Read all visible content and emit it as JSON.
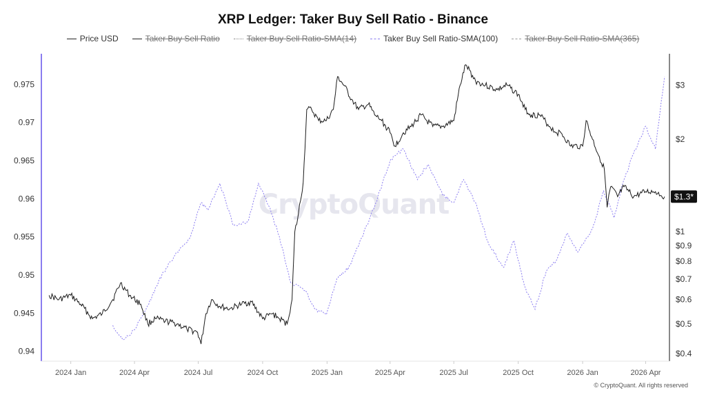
{
  "title": "XRP Ledger: Taker Buy Sell Ratio - Binance",
  "watermark": "CryptoQuant",
  "copyright": "© CryptoQuant. All rights reserved",
  "legend": [
    {
      "label": "Price USD",
      "style": "solid-black",
      "hidden": false
    },
    {
      "label": "Taker Buy Sell Ratio",
      "style": "solid-black",
      "hidden": true
    },
    {
      "label": "Taker Buy Sell Ratio-SMA(14)",
      "style": "dotted-grey",
      "hidden": true
    },
    {
      "label": "Taker Buy Sell Ratio-SMA(100)",
      "style": "dashed-purple",
      "hidden": false
    },
    {
      "label": "Taker Buy Sell Ratio-SMA(365)",
      "style": "dashed-grey",
      "hidden": true
    }
  ],
  "chart_data": {
    "type": "line",
    "title": "XRP Ledger: Taker Buy Sell Ratio - Binance",
    "x_ticks": [
      "2024 Jan",
      "2024 Apr",
      "2024 Jul",
      "2024 Oct",
      "2025 Jan",
      "2025 Apr",
      "2025 Jul",
      "2025 Oct",
      "2026 Jan",
      "2026 Apr"
    ],
    "y_left": {
      "ticks": [
        0.94,
        0.945,
        0.95,
        0.955,
        0.96,
        0.965,
        0.97,
        0.975
      ],
      "range": [
        0.9387,
        0.979
      ]
    },
    "y_right": {
      "scale": "log",
      "ticks": [
        {
          "value": 0.4,
          "label": "$0.4"
        },
        {
          "value": 0.5,
          "label": "$0.5"
        },
        {
          "value": 0.6,
          "label": "$0.6"
        },
        {
          "value": 0.7,
          "label": "$0.7"
        },
        {
          "value": 0.8,
          "label": "$0.8"
        },
        {
          "value": 0.9,
          "label": "$0.9"
        },
        {
          "value": 1,
          "label": "$1"
        },
        {
          "value": 2,
          "label": "$2"
        },
        {
          "value": 3,
          "label": "$3"
        }
      ]
    },
    "last_price_label": "$1.3*",
    "last_price_value": 1.3,
    "grid": false,
    "legend_position": "top-center",
    "colors": {
      "price": "#1a1a1a",
      "sma100": "#8a7cf0",
      "left_axis": "#8a7cf0",
      "right_axis": "#111111",
      "badge": "#111111"
    },
    "series": [
      {
        "name": "Price USD",
        "axis": "right",
        "x": [
          "2023-12-01",
          "2023-12-15",
          "2024-01-01",
          "2024-01-15",
          "2024-02-01",
          "2024-02-15",
          "2024-03-01",
          "2024-03-12",
          "2024-03-25",
          "2024-04-10",
          "2024-04-20",
          "2024-05-01",
          "2024-05-15",
          "2024-06-01",
          "2024-06-15",
          "2024-06-30",
          "2024-07-05",
          "2024-07-12",
          "2024-07-20",
          "2024-08-01",
          "2024-08-15",
          "2024-09-01",
          "2024-09-15",
          "2024-10-01",
          "2024-10-15",
          "2024-10-25",
          "2024-11-05",
          "2024-11-12",
          "2024-11-16",
          "2024-11-20",
          "2024-11-28",
          "2024-12-03",
          "2024-12-10",
          "2024-12-20",
          "2024-12-31",
          "2025-01-10",
          "2025-01-16",
          "2025-01-25",
          "2025-02-05",
          "2025-02-15",
          "2025-03-01",
          "2025-03-10",
          "2025-03-20",
          "2025-04-01",
          "2025-04-08",
          "2025-04-20",
          "2025-05-01",
          "2025-05-15",
          "2025-06-01",
          "2025-06-15",
          "2025-07-01",
          "2025-07-10",
          "2025-07-18",
          "2025-08-01",
          "2025-08-15",
          "2025-09-01",
          "2025-09-15",
          "2025-10-01",
          "2025-10-11",
          "2025-10-20",
          "2025-11-01",
          "2025-11-15",
          "2025-11-25",
          "2025-12-01",
          "2025-12-15",
          "2026-01-01",
          "2026-01-06",
          "2026-01-15",
          "2026-02-01",
          "2026-02-05",
          "2026-02-10",
          "2026-02-20",
          "2026-03-01",
          "2026-03-15",
          "2026-04-01",
          "2026-04-15",
          "2026-04-28"
        ],
        "y": [
          0.62,
          0.6,
          0.62,
          0.58,
          0.52,
          0.54,
          0.6,
          0.68,
          0.62,
          0.58,
          0.5,
          0.52,
          0.51,
          0.5,
          0.48,
          0.47,
          0.43,
          0.54,
          0.6,
          0.57,
          0.56,
          0.58,
          0.59,
          0.52,
          0.54,
          0.52,
          0.5,
          0.6,
          1.0,
          1.1,
          1.45,
          2.5,
          2.5,
          2.3,
          2.3,
          2.5,
          3.2,
          3.0,
          2.7,
          2.5,
          2.6,
          2.4,
          2.3,
          2.1,
          1.9,
          2.1,
          2.2,
          2.4,
          2.2,
          2.2,
          2.3,
          3.0,
          3.5,
          3.1,
          3.0,
          2.9,
          3.0,
          2.8,
          2.5,
          2.4,
          2.4,
          2.2,
          2.1,
          2.1,
          1.9,
          1.9,
          2.3,
          2.0,
          1.6,
          1.2,
          1.4,
          1.3,
          1.4,
          1.3,
          1.35,
          1.35,
          1.3
        ]
      },
      {
        "name": "Taker Buy Sell Ratio-SMA(100)",
        "axis": "left",
        "x": [
          "2024-03-01",
          "2024-03-15",
          "2024-04-01",
          "2024-04-20",
          "2024-05-10",
          "2024-06-01",
          "2024-06-20",
          "2024-07-05",
          "2024-07-15",
          "2024-08-01",
          "2024-08-20",
          "2024-09-10",
          "2024-09-25",
          "2024-10-10",
          "2024-10-25",
          "2024-11-10",
          "2024-12-01",
          "2024-12-15",
          "2024-12-31",
          "2025-01-15",
          "2025-02-01",
          "2025-02-20",
          "2025-03-10",
          "2025-04-01",
          "2025-04-20",
          "2025-05-10",
          "2025-05-25",
          "2025-06-15",
          "2025-07-01",
          "2025-07-15",
          "2025-08-01",
          "2025-08-20",
          "2025-09-10",
          "2025-09-25",
          "2025-10-10",
          "2025-10-25",
          "2025-11-10",
          "2025-11-25",
          "2025-12-10",
          "2025-12-25",
          "2026-01-15",
          "2026-01-31",
          "2026-02-15",
          "2026-03-01",
          "2026-03-15",
          "2026-04-01",
          "2026-04-15",
          "2026-04-28"
        ],
        "y": [
          0.9434,
          0.9415,
          0.9428,
          0.946,
          0.95,
          0.953,
          0.955,
          0.9595,
          0.9585,
          0.962,
          0.9565,
          0.957,
          0.962,
          0.959,
          0.955,
          0.949,
          0.948,
          0.9455,
          0.9448,
          0.9495,
          0.951,
          0.955,
          0.959,
          0.965,
          0.9665,
          0.9625,
          0.9645,
          0.9605,
          0.9595,
          0.9625,
          0.9595,
          0.954,
          0.951,
          0.9545,
          0.9485,
          0.9455,
          0.9505,
          0.952,
          0.9555,
          0.953,
          0.956,
          0.961,
          0.9575,
          0.9625,
          0.966,
          0.9695,
          0.9665,
          0.976
        ]
      }
    ]
  }
}
